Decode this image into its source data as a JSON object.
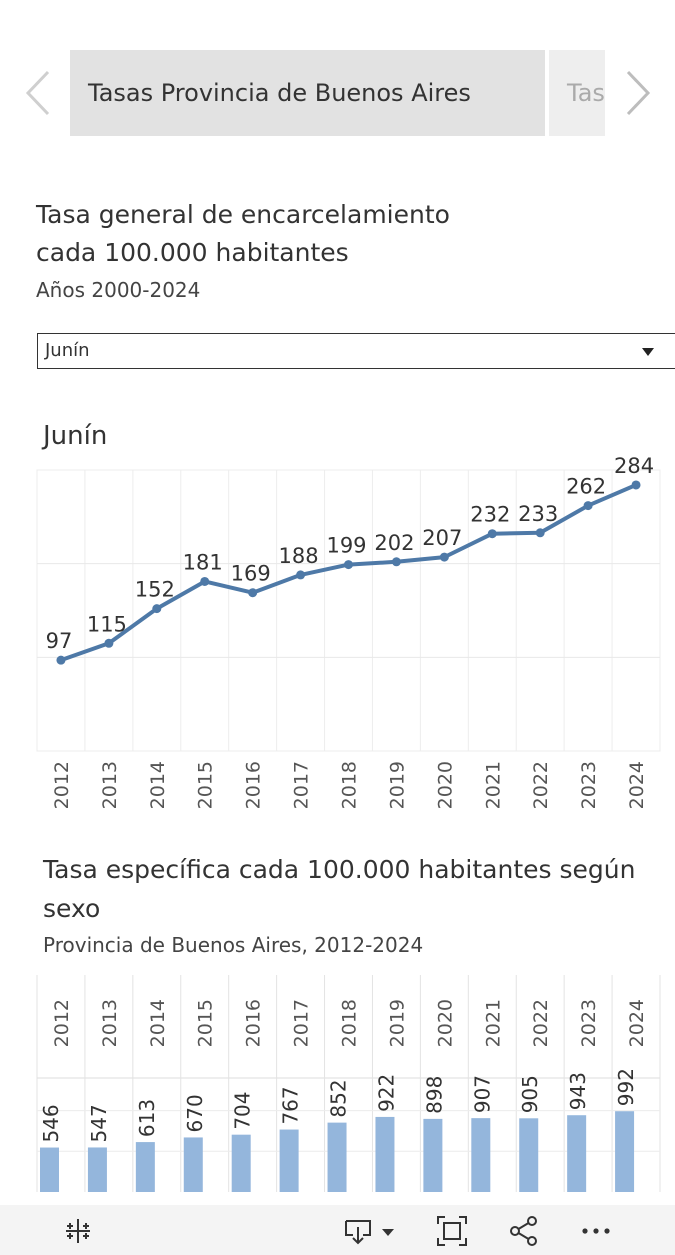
{
  "tabs": {
    "active_label": "Tasas Provincia de Buenos Aires",
    "next_label": "Tas"
  },
  "section1": {
    "title_line1": "Tasa general de encarcelamiento",
    "title_line2": "cada 100.000 habitantes",
    "subtitle": "Años 2000-2024"
  },
  "filter": {
    "selected": "Junín"
  },
  "section2": {
    "title_line1": "Tasa específica cada 100.000 habitantes según",
    "title_line2": "sexo",
    "subtitle": "Provincia de Buenos Aires, 2012-2024"
  },
  "chart_data": [
    {
      "type": "line",
      "title": "Junín",
      "x": [
        "2012",
        "2013",
        "2014",
        "2015",
        "2016",
        "2017",
        "2018",
        "2019",
        "2020",
        "2021",
        "2022",
        "2023",
        "2024"
      ],
      "values": [
        97,
        115,
        152,
        181,
        169,
        188,
        199,
        202,
        207,
        232,
        233,
        262,
        284
      ],
      "ylim": [
        0,
        300
      ],
      "grid": true,
      "color": "#4e79a7"
    },
    {
      "type": "bar",
      "categories": [
        "2012",
        "2013",
        "2014",
        "2015",
        "2016",
        "2017",
        "2018",
        "2019",
        "2020",
        "2021",
        "2022",
        "2023",
        "2024"
      ],
      "values": [
        546,
        547,
        613,
        670,
        704,
        767,
        852,
        922,
        898,
        907,
        905,
        943,
        992
      ],
      "grid": true,
      "color": "#94b6dc"
    }
  ],
  "toolbar": {
    "icons": [
      "tableau-logo-icon",
      "download-icon",
      "fullscreen-icon",
      "share-icon",
      "more-icon"
    ]
  }
}
